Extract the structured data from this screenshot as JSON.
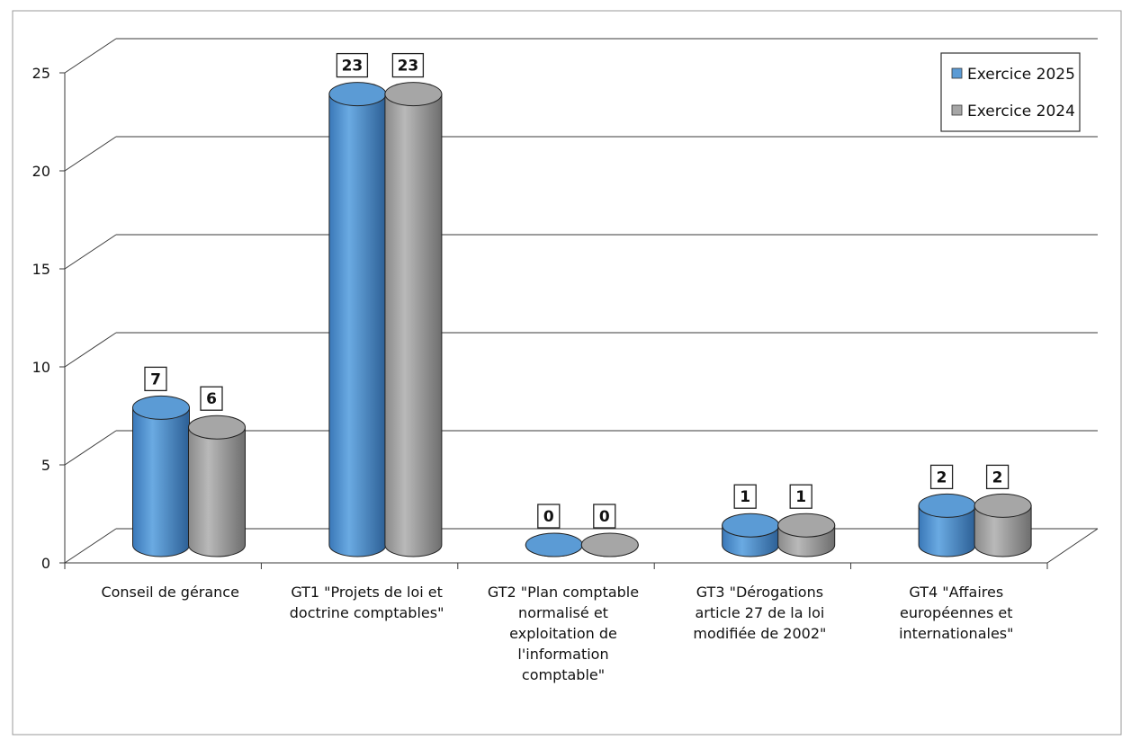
{
  "chart_data": {
    "type": "bar",
    "title": "",
    "xlabel": "",
    "ylabel": "",
    "ylim": [
      0,
      25
    ],
    "yticks": [
      "0",
      "5",
      "10",
      "15",
      "20",
      "25"
    ],
    "grid": true,
    "legend_position": "top-right",
    "categories": [
      [
        "Conseil de gérance"
      ],
      [
        "GT1 \"Projets de loi et",
        "doctrine comptables\""
      ],
      [
        "GT2 \"Plan comptable",
        "normalisé et",
        "exploitation de",
        "l'information",
        "comptable\""
      ],
      [
        "GT3 \"Dérogations",
        "article 27 de la loi",
        "modifiée de 2002\""
      ],
      [
        "GT4 \"Affaires",
        "européennes et",
        "internationales\""
      ]
    ],
    "series": [
      {
        "name": "Exercice 2025",
        "values": [
          7,
          23,
          0,
          1,
          2
        ],
        "labels": [
          "7",
          "23",
          "0",
          "1",
          "2"
        ],
        "color": "#5b9bd5"
      },
      {
        "name": "Exercice 2024",
        "values": [
          6,
          23,
          0,
          1,
          2
        ],
        "labels": [
          "6",
          "23",
          "0",
          "1",
          "2"
        ],
        "color": "#a6a6a6"
      }
    ]
  }
}
